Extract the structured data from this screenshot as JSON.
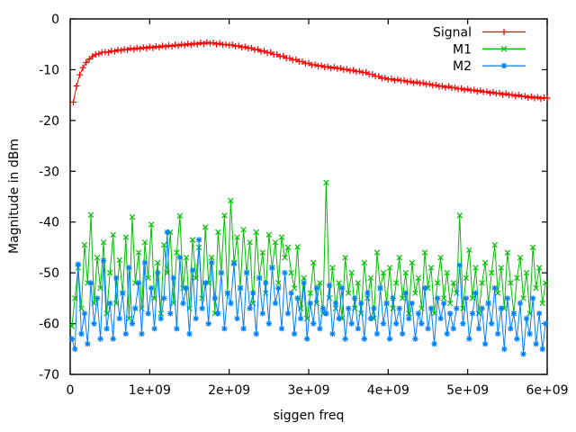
{
  "figure": {
    "background": "#ffffff",
    "border_color": "#000000"
  },
  "chart_data": {
    "type": "line",
    "title": "",
    "xlabel": "siggen freq",
    "ylabel": "Magnitude in dBm",
    "xlim_ghz": [
      0,
      6
    ],
    "ylim": [
      -70,
      0
    ],
    "grid": false,
    "legend_position": "top-right-inside",
    "x_ticks": {
      "values_ghz": [
        0,
        1,
        2,
        3,
        4,
        5,
        6
      ],
      "labels": [
        "0",
        "1e+09",
        "2e+09",
        "3e+09",
        "4e+09",
        "5e+09",
        "6e+09"
      ]
    },
    "y_ticks": {
      "values": [
        0,
        -10,
        -20,
        -30,
        -40,
        -50,
        -60,
        -70
      ],
      "labels": [
        "0",
        "-10",
        "-20",
        "-30",
        "-40",
        "-50",
        "-60",
        "-70"
      ]
    },
    "series": [
      {
        "name": "Signal",
        "color": "#ff0000",
        "marker": "plus",
        "x_start_ghz": 0.04,
        "x_step_ghz": 0.04,
        "y": [
          -16.4,
          -13.2,
          -11.0,
          -9.6,
          -8.6,
          -7.9,
          -7.4,
          -7.0,
          -6.9,
          -6.6,
          -6.5,
          -6.6,
          -6.3,
          -6.4,
          -6.1,
          -6.2,
          -6.0,
          -6.1,
          -5.8,
          -6.0,
          -5.7,
          -5.9,
          -5.6,
          -5.8,
          -5.5,
          -5.7,
          -5.4,
          -5.6,
          -5.3,
          -5.5,
          -5.2,
          -5.4,
          -5.1,
          -5.3,
          -5.0,
          -5.2,
          -4.9,
          -5.1,
          -4.8,
          -5.0,
          -4.7,
          -4.9,
          -4.6,
          -4.8,
          -4.7,
          -5.0,
          -4.8,
          -5.1,
          -5.0,
          -5.2,
          -5.1,
          -5.4,
          -5.3,
          -5.6,
          -5.5,
          -5.8,
          -5.7,
          -6.1,
          -6.0,
          -6.4,
          -6.3,
          -6.7,
          -6.6,
          -7.0,
          -7.0,
          -7.4,
          -7.3,
          -7.7,
          -7.7,
          -8.1,
          -8.0,
          -8.4,
          -8.4,
          -8.8,
          -8.7,
          -9.1,
          -9.0,
          -9.3,
          -9.2,
          -9.5,
          -9.4,
          -9.7,
          -9.5,
          -9.8,
          -9.7,
          -10.0,
          -9.9,
          -10.2,
          -10.1,
          -10.4,
          -10.3,
          -10.6,
          -10.5,
          -10.9,
          -10.9,
          -11.3,
          -11.3,
          -11.7,
          -11.6,
          -11.9,
          -11.8,
          -12.1,
          -11.9,
          -12.2,
          -12.1,
          -12.4,
          -12.3,
          -12.6,
          -12.4,
          -12.7,
          -12.6,
          -12.9,
          -12.8,
          -13.1,
          -13.0,
          -13.3,
          -13.2,
          -13.5,
          -13.3,
          -13.6,
          -13.5,
          -13.8,
          -13.7,
          -14.0,
          -13.8,
          -14.1,
          -14.0,
          -14.3,
          -14.1,
          -14.4,
          -14.3,
          -14.6,
          -14.4,
          -14.7,
          -14.6,
          -14.9,
          -14.7,
          -15.0,
          -14.9,
          -15.2,
          -15.0,
          -15.3,
          -15.2,
          -15.5,
          -15.3,
          -15.6,
          -15.4,
          -15.7,
          -15.5,
          -15.6
        ]
      },
      {
        "name": "M1",
        "color": "#00c000",
        "marker": "cross",
        "x_start_ghz": 0.02,
        "x_step_ghz": 0.04,
        "y": [
          -60.5,
          -55,
          -49,
          -57,
          -44.5,
          -52,
          -38.6,
          -56,
          -47,
          -53,
          -44,
          -58,
          -50,
          -42.5,
          -56,
          -47.5,
          -54,
          -43,
          -59,
          -39,
          -52,
          -46,
          -57,
          -44,
          -51,
          -40.5,
          -55,
          -48,
          -58,
          -44.5,
          -50,
          -42,
          -56,
          -46,
          -38.8,
          -53,
          -47,
          -57,
          -43.5,
          -51,
          -45,
          -55,
          -41,
          -52,
          -47,
          -58,
          -42,
          -50,
          -38.7,
          -54,
          -35.8,
          -48,
          -43,
          -53,
          -41.5,
          -50,
          -44,
          -56,
          -42,
          -51,
          -46,
          -54,
          -42.5,
          -49,
          -44,
          -52,
          -43,
          -47,
          -45,
          -50,
          -53,
          -44.9,
          -57,
          -51,
          -59,
          -54,
          -48,
          -56,
          -52,
          -58,
          -32.2,
          -55,
          -49,
          -57,
          -52,
          -59,
          -47,
          -54,
          -50,
          -57,
          -52,
          -58,
          -48,
          -55,
          -51,
          -59,
          -46,
          -53,
          -50,
          -56,
          -49,
          -57,
          -52,
          -47,
          -55,
          -50,
          -58,
          -48,
          -54,
          -51,
          -57,
          -46,
          -53,
          -49,
          -58,
          -52,
          -47,
          -55,
          -50,
          -56,
          -52,
          -54,
          -38.7,
          -57,
          -51,
          -45.5,
          -55,
          -49,
          -58,
          -52,
          -48,
          -56,
          -50,
          -44.5,
          -54,
          -49,
          -57,
          -46,
          -52,
          -58,
          -51,
          -47,
          -55,
          -50,
          -58,
          -45,
          -53,
          -49,
          -56,
          -52
        ]
      },
      {
        "name": "M2",
        "color": "#0080ff",
        "marker": "star",
        "x_start_ghz": 0.02,
        "x_step_ghz": 0.04,
        "y": [
          -63,
          -65,
          -48.3,
          -62,
          -58,
          -64,
          -52,
          -60,
          -55,
          -63,
          -47.6,
          -61,
          -56,
          -63,
          -51,
          -59,
          -54,
          -62,
          -49,
          -60,
          -57,
          -52,
          -62,
          -48,
          -58,
          -53,
          -61,
          -50,
          -59,
          -55,
          -42,
          -58,
          -51,
          -61,
          -47,
          -56,
          -53,
          -62,
          -49.5,
          -59,
          -43.5,
          -57,
          -52,
          -60,
          -48,
          -55,
          -58,
          -50,
          -61,
          -54,
          -56,
          -48.2,
          -59,
          -53,
          -61,
          -50,
          -57,
          -54,
          -62,
          -51,
          -58,
          -52,
          -60,
          -49,
          -56,
          -53,
          -61,
          -50,
          -58,
          -54,
          -62,
          -55,
          -59,
          -52,
          -63,
          -56,
          -60,
          -53,
          -61,
          -57,
          -58,
          -52.5,
          -62,
          -56,
          -59,
          -53,
          -63,
          -57,
          -60,
          -55,
          -61,
          -56,
          -63,
          -54,
          -59,
          -57,
          -62,
          -53,
          -60,
          -56,
          -63,
          -55,
          -60,
          -57,
          -62,
          -54,
          -59,
          -56,
          -63,
          -58,
          -60,
          -53,
          -61,
          -57,
          -64,
          -55,
          -59,
          -56,
          -62,
          -58,
          -61,
          -57,
          -48.5,
          -60,
          -55,
          -63,
          -58,
          -54,
          -61,
          -57,
          -64,
          -56,
          -60,
          -53,
          -62,
          -57,
          -65,
          -55,
          -61,
          -58,
          -63,
          -56,
          -66,
          -59,
          -62,
          -55,
          -64,
          -58,
          -65,
          -60
        ]
      }
    ]
  }
}
